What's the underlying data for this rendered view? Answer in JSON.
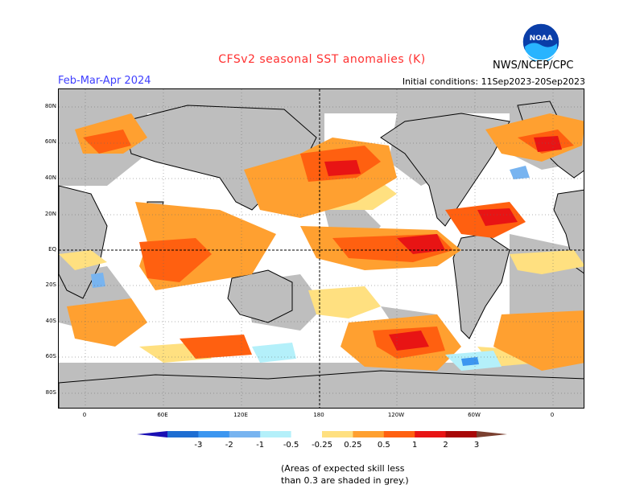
{
  "title": "CFSv2 seasonal SST anomalies (K)",
  "period": "Feb-Mar-Apr 2024",
  "initial_conditions": "Initial conditions: 11Sep2023-20Sep2023",
  "agency": "NWS/NCEP/CPC",
  "logo_text": "NOAA",
  "logo_icon": "noaa-logo-icon",
  "lat_labels": [
    "80N",
    "60N",
    "40N",
    "20N",
    "EQ",
    "20S",
    "40S",
    "60S",
    "80S"
  ],
  "lon_labels": [
    "0",
    "60E",
    "120E",
    "180",
    "120W",
    "60W",
    "0"
  ],
  "colorbar": {
    "labels": [
      "-3",
      "-2",
      "-1",
      "-0.5",
      "-0.25",
      "0.25",
      "0.5",
      "1",
      "2",
      "3"
    ],
    "colors": [
      "#1a10b4",
      "#1e6ed2",
      "#3c96f0",
      "#78b4f0",
      "#b4f0fa",
      "#ffffff",
      "#ffe080",
      "#ffa030",
      "#ff6010",
      "#e81414",
      "#a80808",
      "#7a4030"
    ]
  },
  "skill_note": [
    "(Areas of expected skill less",
    "than 0.3 are shaded in grey.)"
  ]
}
